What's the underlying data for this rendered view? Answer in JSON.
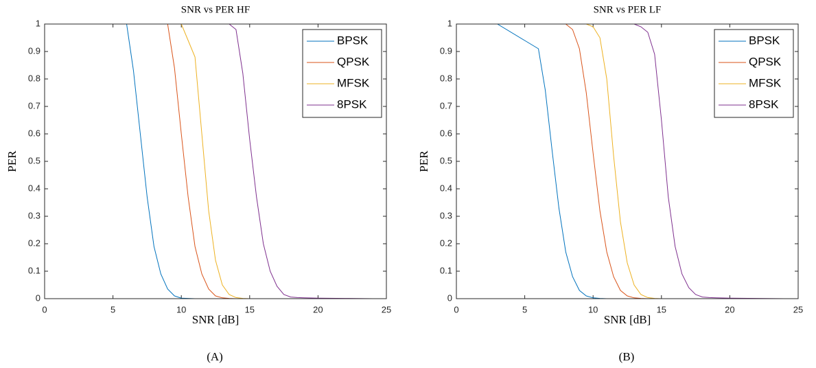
{
  "chart_data": [
    {
      "type": "line",
      "title": "SNR vs PER HF",
      "xlabel": "SNR [dB]",
      "ylabel": "PER",
      "caption": "(A)",
      "xlim": [
        0,
        25
      ],
      "ylim": [
        0,
        1
      ],
      "xticks": [
        0,
        5,
        10,
        15,
        20,
        25
      ],
      "yticks": [
        0,
        0.1,
        0.2,
        0.3,
        0.4,
        0.5,
        0.6,
        0.7,
        0.8,
        0.9,
        1
      ],
      "legend": "northeast",
      "x": [
        0,
        3,
        5,
        5.5,
        6,
        6.5,
        7,
        7.5,
        8,
        8.5,
        9,
        9.5,
        10,
        10.5,
        11,
        11.5,
        12,
        12.5,
        13,
        13.5,
        14,
        14.5,
        15,
        15.5,
        16,
        16.5,
        17,
        17.5,
        18,
        18.5,
        19,
        20,
        22,
        24
      ],
      "series": [
        {
          "name": "BPSK",
          "color": "#0072bd",
          "values": [
            1,
            1,
            1,
            1,
            1,
            0.83,
            0.6,
            0.37,
            0.19,
            0.09,
            0.035,
            0.01,
            0.002,
            0.001,
            0,
            0,
            0,
            0,
            0,
            0,
            0,
            0,
            0,
            0,
            0,
            0,
            0,
            0,
            0,
            0,
            0,
            0,
            0,
            0
          ]
        },
        {
          "name": "QPSK",
          "color": "#d95319",
          "values": [
            1,
            1,
            1,
            1,
            1,
            1,
            1,
            1,
            1,
            1,
            1,
            0.84,
            0.6,
            0.37,
            0.19,
            0.09,
            0.035,
            0.01,
            0.003,
            0.001,
            0,
            0,
            0,
            0,
            0,
            0,
            0,
            0,
            0,
            0,
            0,
            0,
            0,
            0
          ]
        },
        {
          "name": "MFSK",
          "color": "#edb120",
          "values": [
            1,
            1,
            1,
            1,
            1,
            1,
            1,
            1,
            1,
            1,
            1,
            1,
            1,
            0.94,
            0.88,
            0.6,
            0.32,
            0.14,
            0.05,
            0.015,
            0.004,
            0.001,
            0,
            0,
            0,
            0,
            0,
            0,
            0,
            0,
            0,
            0,
            0,
            0
          ]
        },
        {
          "name": "8PSK",
          "color": "#7e2f8e",
          "values": [
            1,
            1,
            1,
            1,
            1,
            1,
            1,
            1,
            1,
            1,
            1,
            1,
            1,
            1,
            1,
            1,
            1,
            1,
            1,
            1,
            0.98,
            0.82,
            0.58,
            0.37,
            0.2,
            0.1,
            0.045,
            0.015,
            0.006,
            0.004,
            0.003,
            0.002,
            0.001,
            0
          ]
        }
      ]
    },
    {
      "type": "line",
      "title": "SNR vs PER LF",
      "xlabel": "SNR [dB]",
      "ylabel": "PER",
      "caption": "(B)",
      "xlim": [
        0,
        25
      ],
      "ylim": [
        0,
        1
      ],
      "xticks": [
        0,
        5,
        10,
        15,
        20,
        25
      ],
      "yticks": [
        0,
        0.1,
        0.2,
        0.3,
        0.4,
        0.5,
        0.6,
        0.7,
        0.8,
        0.9,
        1
      ],
      "legend": "northeast",
      "x": [
        0,
        3,
        5,
        5.5,
        6,
        6.5,
        7,
        7.5,
        8,
        8.5,
        9,
        9.5,
        10,
        10.5,
        11,
        11.5,
        12,
        12.5,
        13,
        13.5,
        14,
        14.5,
        15,
        15.5,
        16,
        16.5,
        17,
        17.5,
        18,
        18.5,
        19,
        20,
        22,
        24
      ],
      "series": [
        {
          "name": "BPSK",
          "color": "#0072bd",
          "values": [
            1,
            1,
            0.94,
            0.925,
            0.91,
            0.76,
            0.54,
            0.33,
            0.17,
            0.08,
            0.03,
            0.01,
            0.003,
            0.001,
            0,
            0,
            0,
            0,
            0,
            0,
            0,
            0,
            0,
            0,
            0,
            0,
            0,
            0,
            0,
            0,
            0,
            0,
            0,
            0
          ]
        },
        {
          "name": "QPSK",
          "color": "#d95319",
          "values": [
            1,
            1,
            1,
            1,
            1,
            1,
            1,
            1,
            1,
            0.98,
            0.91,
            0.75,
            0.53,
            0.32,
            0.17,
            0.08,
            0.03,
            0.01,
            0.003,
            0.001,
            0,
            0,
            0,
            0,
            0,
            0,
            0,
            0,
            0,
            0,
            0,
            0,
            0,
            0
          ]
        },
        {
          "name": "MFSK",
          "color": "#edb120",
          "values": [
            1,
            1,
            1,
            1,
            1,
            1,
            1,
            1,
            1,
            1,
            1,
            1,
            0.99,
            0.95,
            0.8,
            0.52,
            0.28,
            0.13,
            0.05,
            0.015,
            0.004,
            0.001,
            0,
            0,
            0,
            0,
            0,
            0,
            0,
            0,
            0,
            0,
            0,
            0
          ]
        },
        {
          "name": "8PSK",
          "color": "#7e2f8e",
          "values": [
            1,
            1,
            1,
            1,
            1,
            1,
            1,
            1,
            1,
            1,
            1,
            1,
            1,
            1,
            1,
            1,
            1,
            1,
            1,
            0.99,
            0.97,
            0.89,
            0.65,
            0.37,
            0.19,
            0.09,
            0.04,
            0.015,
            0.006,
            0.004,
            0.003,
            0.002,
            0.001,
            0
          ]
        }
      ]
    }
  ]
}
